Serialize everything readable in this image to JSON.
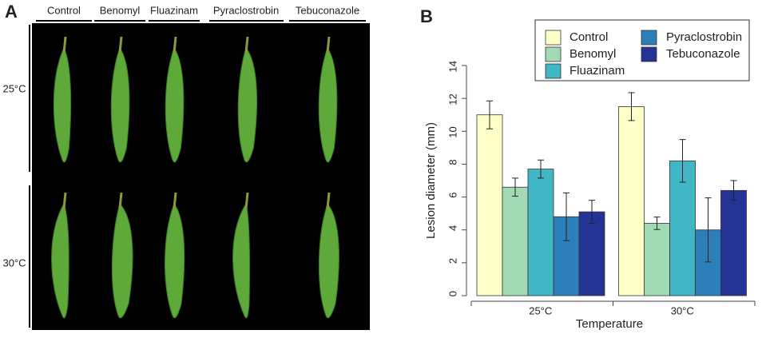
{
  "panel_a": {
    "label": "A",
    "columns": [
      "Control",
      "Benomyl",
      "Fluazinam",
      "Pyraclostrobin",
      "Tebuconazole"
    ],
    "rows": [
      "25°C",
      "30°C"
    ]
  },
  "chart_data": {
    "type": "bar",
    "panel_label": "B",
    "x_label": "Temperature",
    "y_label": "Lesion diameter (mm)",
    "categories": [
      "25°C",
      "30°C"
    ],
    "series": [
      {
        "name": "Control",
        "color": "#ffffc8",
        "values": [
          11.0,
          11.5
        ],
        "errors": [
          0.85,
          0.85
        ]
      },
      {
        "name": "Benomyl",
        "color": "#a1dab4",
        "values": [
          6.6,
          4.4
        ],
        "errors": [
          0.55,
          0.38
        ]
      },
      {
        "name": "Fluazinam",
        "color": "#41b6c4",
        "values": [
          7.7,
          8.2
        ],
        "errors": [
          0.55,
          1.3
        ]
      },
      {
        "name": "Pyraclostrobin",
        "color": "#2c7fb8",
        "values": [
          4.8,
          4.0
        ],
        "errors": [
          1.45,
          1.95
        ]
      },
      {
        "name": "Tebuconazole",
        "color": "#253494",
        "values": [
          5.1,
          6.4
        ],
        "errors": [
          0.7,
          0.6
        ]
      }
    ],
    "ylim": [
      0,
      14
    ],
    "yticks": [
      0,
      2,
      4,
      6,
      8,
      10,
      12,
      14
    ],
    "legend": "top-right"
  }
}
